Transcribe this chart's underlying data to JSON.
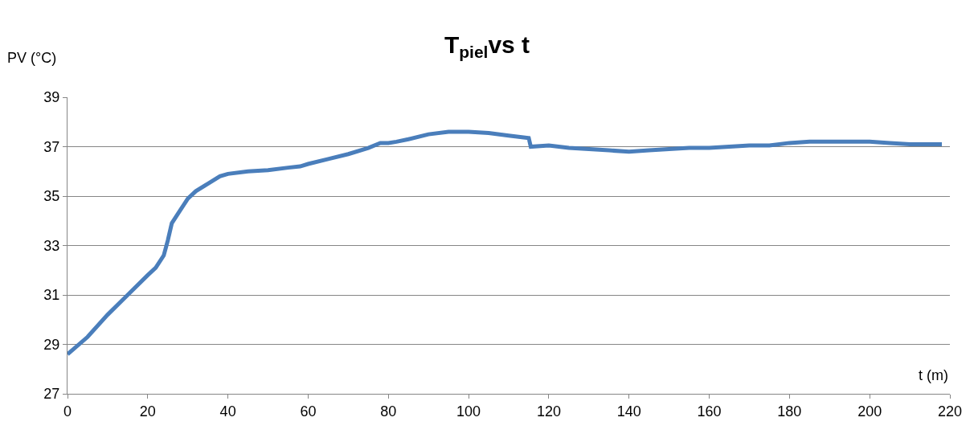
{
  "chart_data": {
    "type": "line",
    "title": "T$_{piel}$vs t",
    "xlabel": "t (m)",
    "ylabel": "PV (°C)",
    "x": [
      0,
      5,
      10,
      15,
      20,
      22,
      24,
      25,
      26,
      28,
      30,
      32,
      35,
      38,
      40,
      45,
      50,
      55,
      58,
      60,
      65,
      70,
      75,
      78,
      80,
      82,
      85,
      90,
      95,
      100,
      105,
      110,
      115,
      115.5,
      120,
      125,
      130,
      135,
      140,
      145,
      150,
      155,
      160,
      165,
      170,
      175,
      180,
      185,
      190,
      195,
      200,
      205,
      210,
      215,
      218
    ],
    "series": [
      {
        "color": "#4a7ebb",
        "values": [
          28.6,
          29.3,
          30.2,
          31.0,
          31.8,
          32.1,
          32.6,
          33.2,
          33.9,
          34.4,
          34.9,
          35.2,
          35.5,
          35.8,
          35.9,
          36.0,
          36.05,
          36.15,
          36.2,
          36.3,
          36.5,
          36.7,
          36.95,
          37.15,
          37.15,
          37.2,
          37.3,
          37.5,
          37.6,
          37.6,
          37.55,
          37.45,
          37.35,
          37.0,
          37.05,
          36.95,
          36.9,
          36.85,
          36.8,
          36.85,
          36.9,
          36.95,
          36.95,
          37.0,
          37.05,
          37.05,
          37.15,
          37.2,
          37.2,
          37.2,
          37.2,
          37.15,
          37.1,
          37.1,
          37.1
        ]
      }
    ],
    "xlim": [
      0,
      220
    ],
    "xticks": [
      0,
      20,
      40,
      60,
      80,
      100,
      120,
      140,
      160,
      180,
      200,
      220
    ],
    "ylim": [
      27,
      39
    ],
    "yticks": [
      27,
      29,
      31,
      33,
      35,
      37,
      39
    ],
    "grid": "y",
    "marker": "none",
    "line_style": "solid"
  }
}
